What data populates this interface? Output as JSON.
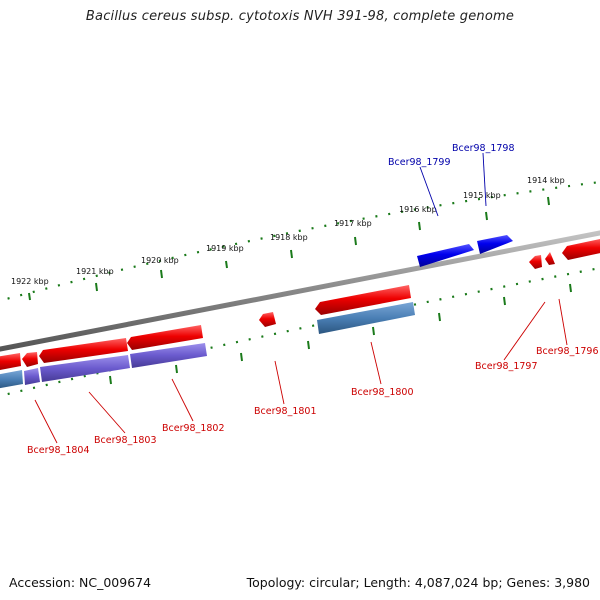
{
  "title": "Bacillus cereus subsp. cytotoxis NVH 391-98, complete genome",
  "footer": {
    "accession": "Accession: NC_009674",
    "summary": "Topology: circular; Length: 4,087,024 bp; Genes: 3,980"
  },
  "colors": {
    "backbone": "#888888",
    "forward_gene": "#ee0000",
    "reverse_gene": "#0000ee",
    "cds_steelblue": "#4a7fb5",
    "cds_purple": "#6a5acd",
    "ticks": "#1a7a1a",
    "label_red": "#cc0000",
    "label_blue": "#0000aa"
  },
  "kbp_ticks": [
    "1922 kbp",
    "1921 kbp",
    "1920 kbp",
    "1919 kbp",
    "1918 kbp",
    "1917 kbp",
    "1916 kbp",
    "1915 kbp",
    "1914 kbp"
  ],
  "gene_labels": [
    "Bcer98_1804",
    "Bcer98_1803",
    "Bcer98_1802",
    "Bcer98_1801",
    "Bcer98_1800",
    "Bcer98_1797",
    "Bcer98_1796",
    "Bcer98_1799",
    "Bcer98_1798"
  ]
}
